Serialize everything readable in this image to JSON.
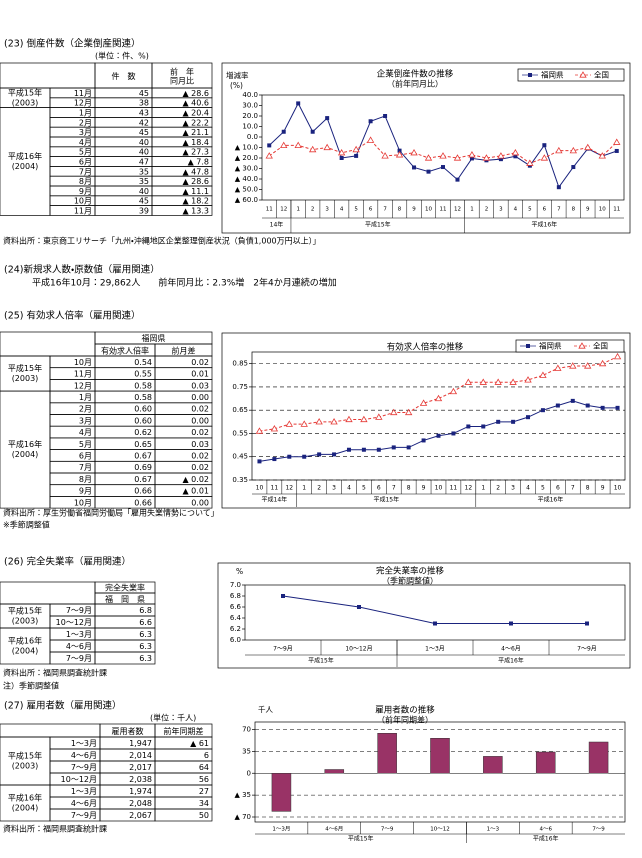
{
  "sections": [
    {
      "title": "(23) 倒産件数（企業倒産関連）",
      "unit": "(単位：件、%)",
      "table": {
        "headers": [
          "件　数",
          "前　年\n同月比"
        ],
        "groups": [
          {
            "label": "平成15年",
            "sub": "(2003)",
            "rows": [
              [
                "11月",
                "45",
                "▲ 28.6"
              ],
              [
                "12月",
                "38",
                "▲ 40.6"
              ]
            ]
          },
          {
            "label": "平成16年",
            "sub": "(2004)",
            "rows": [
              [
                "1月",
                "43",
                "▲ 20.4"
              ],
              [
                "2月",
                "42",
                "▲ 22.2"
              ],
              [
                "3月",
                "45",
                "▲ 21.1"
              ],
              [
                "4月",
                "40",
                "▲ 18.4"
              ],
              [
                "5月",
                "40",
                "▲ 27.3"
              ],
              [
                "6月",
                "47",
                "▲ 7.8"
              ],
              [
                "7月",
                "35",
                "▲ 47.8"
              ],
              [
                "8月",
                "35",
                "▲ 28.6"
              ],
              [
                "9月",
                "40",
                "▲ 11.1"
              ],
              [
                "10月",
                "45",
                "▲ 18.2"
              ],
              [
                "11月",
                "39",
                "▲ 13.3"
              ]
            ]
          }
        ]
      },
      "source": "資料出所：東京商工リサーチ「九州・沖縄地区企業整理倒産状況（負債1,000万円以上）」"
    },
    {
      "title": "(24)新規求人数・原数値（雇用関連）",
      "text": "平成16年10月：29,862人　　前年同月比：2.3%増　2年4か月連続の増加"
    },
    {
      "title": "(25) 有効求人倍率（雇用関連）",
      "table": {
        "header_title": "福岡県",
        "headers": [
          "有効求人倍率",
          "前月差"
        ],
        "groups": [
          {
            "label": "平成15年",
            "sub": "(2003)",
            "rows": [
              [
                "10月",
                "0.54",
                "0.02"
              ],
              [
                "11月",
                "0.55",
                "0.01"
              ],
              [
                "12月",
                "0.58",
                "0.03"
              ]
            ]
          },
          {
            "label": "平成16年",
            "sub": "(2004)",
            "rows": [
              [
                "1月",
                "0.58",
                "0.00"
              ],
              [
                "2月",
                "0.60",
                "0.02"
              ],
              [
                "3月",
                "0.60",
                "0.00"
              ],
              [
                "4月",
                "0.62",
                "0.02"
              ],
              [
                "5月",
                "0.65",
                "0.03"
              ],
              [
                "6月",
                "0.67",
                "0.02"
              ],
              [
                "7月",
                "0.69",
                "0.02"
              ],
              [
                "8月",
                "0.67",
                "▲ 0.02"
              ],
              [
                "9月",
                "0.66",
                "▲ 0.01"
              ],
              [
                "10月",
                "0.66",
                "0.00"
              ]
            ]
          }
        ]
      },
      "source": "資料出所：厚生労働省福岡労働局「雇用失業情勢について」",
      "note": "※季節調整値"
    },
    {
      "title": "(26) 完全失業率（雇用関連）",
      "table": {
        "header_title": "完全失業率",
        "headers": [
          "福　岡　県"
        ],
        "groups": [
          {
            "label": "平成15年",
            "sub": "(2003)",
            "rows": [
              [
                "7～9月",
                "6.8"
              ],
              [
                "10～12月",
                "6.6"
              ]
            ]
          },
          {
            "label": "平成16年",
            "sub": "(2004)",
            "rows": [
              [
                "1～3月",
                "6.3"
              ],
              [
                "4～6月",
                "6.3"
              ],
              [
                "7～9月",
                "6.3"
              ]
            ]
          }
        ]
      },
      "source": "資料出所：福岡県調査統計課",
      "note": "注）季節調整値"
    },
    {
      "title": "(27) 雇用者数（雇用関連）",
      "unit": "(単位：千人)",
      "table": {
        "headers": [
          "雇用者数",
          "前年同期差"
        ],
        "groups": [
          {
            "label": "平成15年",
            "sub": "(2003)",
            "rows": [
              [
                "1～3月",
                "1,947",
                "▲ 61"
              ],
              [
                "4～6月",
                "2,014",
                "6"
              ],
              [
                "7～9月",
                "2,017",
                "64"
              ],
              [
                "10～12月",
                "2,038",
                "56"
              ]
            ]
          },
          {
            "label": "平成16年",
            "sub": "(2004)",
            "rows": [
              [
                "1～3月",
                "1,974",
                "27"
              ],
              [
                "4～6月",
                "2,048",
                "34"
              ],
              [
                "7～9月",
                "2,067",
                "50"
              ]
            ]
          }
        ]
      },
      "source": "資料出所：福岡県調査統計課"
    }
  ],
  "chart_data": [
    {
      "type": "line",
      "title": "企業倒産件数の推移",
      "subtitle": "（前年同月比）",
      "y_label": "増減率",
      "y_unit": "(%)",
      "categories": [
        "11",
        "12",
        "1",
        "2",
        "3",
        "4",
        "5",
        "6",
        "7",
        "8",
        "9",
        "10",
        "11",
        "12",
        "1",
        "2",
        "3",
        "4",
        "5",
        "6",
        "7",
        "8",
        "9",
        "10",
        "11"
      ],
      "x_groups": [
        "14年",
        "平成15年",
        "平成16年"
      ],
      "series": [
        {
          "name": "福岡県",
          "color": "#1a237e",
          "marker": "square",
          "line_style": "solid",
          "values": [
            -8,
            5,
            32,
            5,
            18,
            -20,
            -18,
            15,
            20,
            -13,
            -29,
            -33,
            -28.6,
            -40.6,
            -20.4,
            -22.2,
            -21.1,
            -18.4,
            -27.3,
            -7.8,
            -47.8,
            -28.6,
            -11.1,
            -18.2,
            -13.3
          ]
        },
        {
          "name": "全国",
          "color": "#e53935",
          "marker": "triangle",
          "line_style": "dashed",
          "values": [
            -18,
            -8,
            -8,
            -12,
            -10,
            -15,
            -12,
            -3,
            -18,
            -17,
            -15,
            -20,
            -18,
            -20,
            -17,
            -20,
            -18,
            -15,
            -25,
            -20,
            -13,
            -13,
            -10,
            -18,
            -5
          ]
        }
      ],
      "ylim": [
        -60,
        40
      ],
      "yticks": [
        {
          "value": 40,
          "label": "40.0"
        },
        {
          "value": 30,
          "label": "30.0"
        },
        {
          "value": 20,
          "label": "20.0"
        },
        {
          "value": 10,
          "label": "10.0"
        },
        {
          "value": 0,
          "label": "0.0"
        },
        {
          "value": -10,
          "label": "▲ 10.0"
        },
        {
          "value": -20,
          "label": "▲ 20.0"
        },
        {
          "value": -30,
          "label": "▲ 30.0"
        },
        {
          "value": -40,
          "label": "▲ 40.0"
        },
        {
          "value": -50,
          "label": "▲ 50.0"
        },
        {
          "value": -60,
          "label": "▲ 60.0"
        }
      ],
      "grid": false,
      "legend": "top-right"
    },
    {
      "type": "line",
      "title": "有効求人倍率の推移",
      "categories": [
        "10",
        "11",
        "12",
        "1",
        "2",
        "3",
        "4",
        "5",
        "6",
        "7",
        "8",
        "9",
        "10",
        "11",
        "12",
        "1",
        "2",
        "3",
        "4",
        "5",
        "6",
        "7",
        "8",
        "9",
        "10"
      ],
      "x_groups": [
        "平成14年",
        "平成15年",
        "平成16年"
      ],
      "series": [
        {
          "name": "福岡県",
          "color": "#1a237e",
          "marker": "square",
          "line_style": "solid",
          "values": [
            0.43,
            0.44,
            0.45,
            0.45,
            0.46,
            0.46,
            0.48,
            0.48,
            0.48,
            0.49,
            0.49,
            0.52,
            0.54,
            0.55,
            0.58,
            0.58,
            0.6,
            0.6,
            0.62,
            0.65,
            0.67,
            0.69,
            0.67,
            0.66,
            0.66
          ]
        },
        {
          "name": "全国",
          "color": "#e53935",
          "marker": "triangle",
          "line_style": "dashed",
          "values": [
            0.56,
            0.57,
            0.59,
            0.59,
            0.6,
            0.6,
            0.61,
            0.61,
            0.62,
            0.64,
            0.64,
            0.68,
            0.7,
            0.73,
            0.77,
            0.77,
            0.77,
            0.77,
            0.78,
            0.8,
            0.83,
            0.84,
            0.84,
            0.85,
            0.88
          ]
        }
      ],
      "ylim": [
        0.35,
        0.9
      ],
      "yticks": [
        0.35,
        0.45,
        0.55,
        0.65,
        0.75,
        0.85
      ],
      "grid": true,
      "legend": "top-right"
    },
    {
      "type": "line",
      "title": "完全失業率の推移",
      "subtitle": "（季節調整値）",
      "y_label": "%",
      "categories": [
        "7～9月",
        "10～12月",
        "1～3月",
        "4～6月",
        "7～9月"
      ],
      "x_groups": [
        "平成15年",
        "平成16年"
      ],
      "values": [
        6.8,
        6.6,
        6.3,
        6.3,
        6.3
      ],
      "color": "#1a237e",
      "marker": "square",
      "line_style": "solid",
      "ylim": [
        6.0,
        7.0
      ],
      "yticks": [
        {
          "value": 7.0,
          "label": "7.0"
        },
        6.8,
        6.6,
        6.4,
        6.2,
        {
          "value": 6.0,
          "label": "6.0"
        }
      ],
      "grid": false
    },
    {
      "type": "bar",
      "title": "雇用者数の推移",
      "subtitle": "（前年同期差）",
      "y_label": "千人",
      "categories": [
        "1～3月",
        "4～6月",
        "7～9",
        "10～12",
        "1～3",
        "4～6",
        "7～9"
      ],
      "x_groups": [
        "平成15年",
        "平成16年"
      ],
      "values": [
        -61,
        6,
        64,
        56,
        27,
        34,
        50
      ],
      "color": "#993366",
      "ylim": [
        -78,
        82
      ],
      "yticks": [
        70,
        35,
        0,
        {
          "value": -35,
          "label": "▲ 35"
        },
        {
          "value": -70,
          "label": "▲ 70"
        }
      ],
      "grid": true
    }
  ]
}
